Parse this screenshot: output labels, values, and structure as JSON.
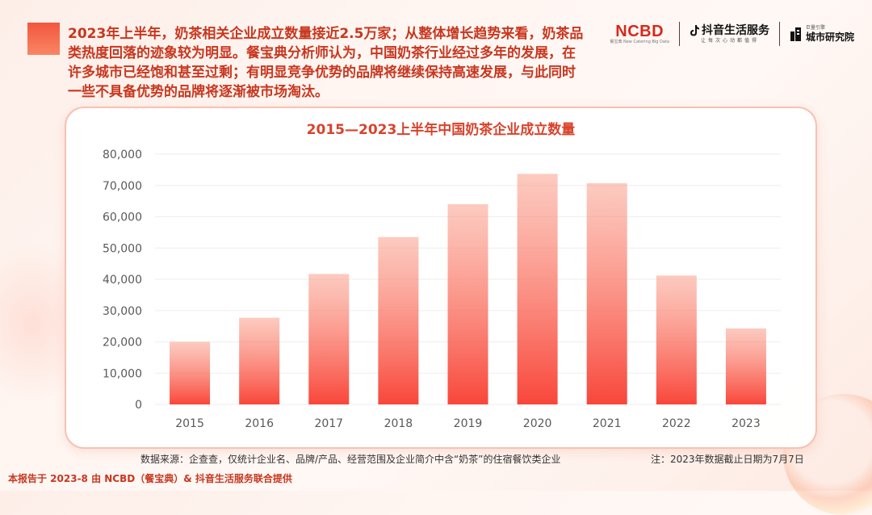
{
  "intro": {
    "text": "2023年上半年，奶茶相关企业成立数量接近2.5万家；从整体增长趋势来看，奶茶品类热度回落的迹象较为明显。餐宝典分析师认为，中国奶茶行业经过多年的发展，在许多城市已经饱和甚至过剩；有明显竞争优势的品牌将继续保持高速发展，与此同时一些不具备优势的品牌将逐渐被市场淘汰。"
  },
  "logos": {
    "ncbd": "NCBD",
    "ncbd_sub": "餐宝典 New Catering Big Data",
    "douyin": "抖音生活服务",
    "douyin_sub": "让每次心动都值得",
    "city_small": "巨量引擎",
    "city": "城市研究院"
  },
  "chart_data": {
    "type": "bar",
    "title": "2015—2023上半年中国奶茶企业成立数量",
    "categories": [
      "2015",
      "2016",
      "2017",
      "2018",
      "2019",
      "2020",
      "2021",
      "2022",
      "2023"
    ],
    "values": [
      20000,
      27700,
      41700,
      53500,
      64000,
      73700,
      70700,
      41200,
      24300
    ],
    "xlabel": "",
    "ylabel": "",
    "ylim": [
      0,
      80000
    ],
    "yticks": [
      "0",
      "10,000",
      "20,000",
      "30,000",
      "40,000",
      "50,000",
      "60,000",
      "70,000",
      "80,000"
    ],
    "grid": true,
    "legend": "none",
    "bar_color_top": "#fb9f8c",
    "bar_color_bottom": "#f9463a"
  },
  "footer": {
    "source": "数据来源：企查查，仅统计企业名、品牌/产品、经营范围及企业简介中含“奶茶”的住宿餐饮类企业",
    "note": "注：2023年数据截止日期为7月7日",
    "credit": "本报告于 2023-8 由 NCBD（餐宝典）& 抖音生活服务联合提供"
  },
  "colors": {
    "accent": "#f2573f",
    "text_red": "#c8371f"
  }
}
